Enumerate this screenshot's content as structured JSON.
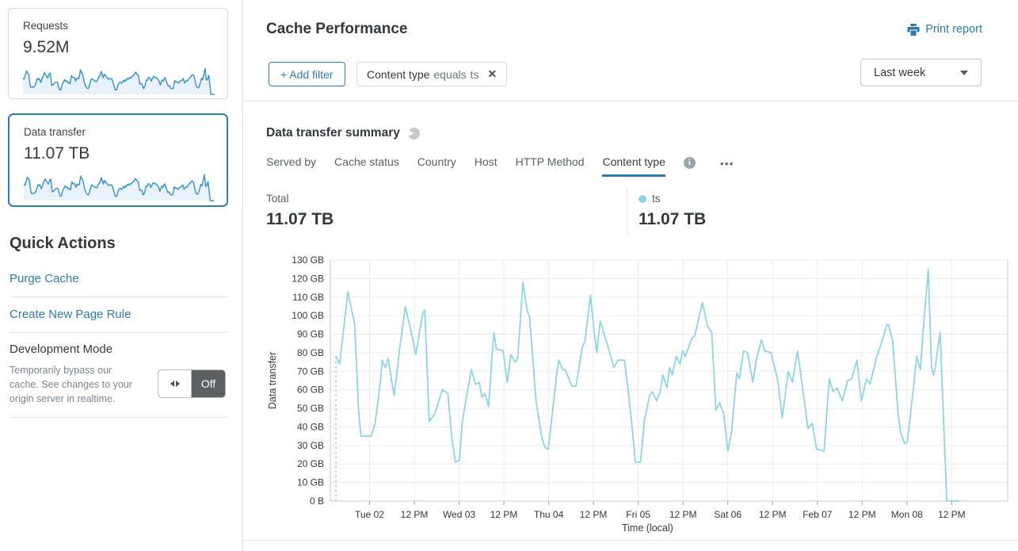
{
  "colors": {
    "accent": "#2c7cb0",
    "selected_card_border": "#2f7cb5",
    "series_line": "#8fd4e5",
    "sparkline_line": "#3e96cc",
    "sparkline_fill": "#e9f2fa",
    "toggle_off_bg": "#5d6063",
    "grid_line": "#ececec",
    "axis_line": "#c9c9c9"
  },
  "sidebar": {
    "cards": [
      {
        "label": "Requests",
        "value": "9.52M",
        "selected": false
      },
      {
        "label": "Data transfer",
        "value": "11.07 TB",
        "selected": true
      }
    ],
    "quick_actions": {
      "title": "Quick Actions",
      "links": [
        "Purge Cache",
        "Create New Page Rule"
      ],
      "dev_mode": {
        "title": "Development Mode",
        "description": "Temporarily bypass our cache. See changes to your origin server in realtime.",
        "toggle_state": "Off"
      }
    }
  },
  "header": {
    "title": "Cache Performance",
    "print_label": "Print report",
    "add_filter_label": "+ Add filter",
    "filter_chip": {
      "field": "Content type",
      "operator": "equals",
      "value": "ts",
      "close": "✕"
    },
    "time_range_selected": "Last week"
  },
  "summary": {
    "title": "Data transfer summary",
    "tabs": [
      "Served by",
      "Cache status",
      "Country",
      "Host",
      "HTTP Method",
      "Content type"
    ],
    "active_tab": "Content type",
    "more_label": "•••",
    "info_label": "i",
    "total_label": "Total",
    "total_value": "11.07 TB",
    "legend": [
      {
        "name": "ts",
        "value": "11.07 TB",
        "color": "#8fd4e5"
      }
    ]
  },
  "chart_data": {
    "type": "line",
    "title": "Data transfer summary",
    "xlabel": "Time (local)",
    "ylabel": "Data transfer",
    "ylim": [
      0,
      130
    ],
    "y_unit": "GB",
    "grid": true,
    "y_ticks": [
      {
        "value": 0,
        "label": "0 B"
      },
      {
        "value": 10,
        "label": "10 GB"
      },
      {
        "value": 20,
        "label": "20 GB"
      },
      {
        "value": 30,
        "label": "30 GB"
      },
      {
        "value": 40,
        "label": "40 GB"
      },
      {
        "value": 50,
        "label": "50 GB"
      },
      {
        "value": 60,
        "label": "60 GB"
      },
      {
        "value": 70,
        "label": "70 GB"
      },
      {
        "value": 80,
        "label": "80 GB"
      },
      {
        "value": 90,
        "label": "90 GB"
      },
      {
        "value": 100,
        "label": "100 GB"
      },
      {
        "value": 110,
        "label": "110 GB"
      },
      {
        "value": 120,
        "label": "120 GB"
      },
      {
        "value": 130,
        "label": "130 GB"
      }
    ],
    "x_domain_hours": [
      -1.5,
      180
    ],
    "x_ticks": [
      {
        "hour": 9,
        "label": "Tue 02"
      },
      {
        "hour": 21,
        "label": "12 PM"
      },
      {
        "hour": 33,
        "label": "Wed 03"
      },
      {
        "hour": 45,
        "label": "12 PM"
      },
      {
        "hour": 57,
        "label": "Thu 04"
      },
      {
        "hour": 69,
        "label": "12 PM"
      },
      {
        "hour": 81,
        "label": "Fri 05"
      },
      {
        "hour": 93,
        "label": "12 PM"
      },
      {
        "hour": 105,
        "label": "Sat 06"
      },
      {
        "hour": 117,
        "label": "12 PM"
      },
      {
        "hour": 129,
        "label": "Feb 07"
      },
      {
        "hour": 141,
        "label": "12 PM"
      },
      {
        "hour": 153,
        "label": "Mon 08"
      },
      {
        "hour": 165,
        "label": "12 PM"
      }
    ],
    "series": [
      {
        "name": "ts",
        "color": "#8fd4e5",
        "start_dashed_drop": true,
        "points": [
          [
            0,
            78
          ],
          [
            1,
            74
          ],
          [
            3.2,
            113
          ],
          [
            4.3,
            102
          ],
          [
            5,
            96
          ],
          [
            6.1,
            48
          ],
          [
            6.7,
            35
          ],
          [
            9.4,
            35
          ],
          [
            10.5,
            42
          ],
          [
            11.9,
            64
          ],
          [
            12.4,
            76
          ],
          [
            13.2,
            72
          ],
          [
            14,
            77
          ],
          [
            14.9,
            65
          ],
          [
            15.6,
            57
          ],
          [
            17,
            81
          ],
          [
            18.6,
            105
          ],
          [
            19.5,
            97
          ],
          [
            20.4,
            89
          ],
          [
            21.4,
            79
          ],
          [
            23.2,
            101
          ],
          [
            23.8,
            103
          ],
          [
            25,
            43
          ],
          [
            26.5,
            47
          ],
          [
            28.5,
            60
          ],
          [
            30,
            58
          ],
          [
            31,
            35
          ],
          [
            32,
            21
          ],
          [
            33.1,
            22
          ],
          [
            33.8,
            42
          ],
          [
            35.2,
            59
          ],
          [
            36.3,
            71
          ],
          [
            37.4,
            63
          ],
          [
            38.4,
            64
          ],
          [
            39.1,
            56
          ],
          [
            39.9,
            58
          ],
          [
            40.9,
            51
          ],
          [
            42.3,
            91
          ],
          [
            43,
            82
          ],
          [
            44.8,
            81
          ],
          [
            45.9,
            64
          ],
          [
            46.9,
            79
          ],
          [
            48,
            75
          ],
          [
            48.7,
            77
          ],
          [
            50.1,
            118
          ],
          [
            51.2,
            103
          ],
          [
            51.9,
            99
          ],
          [
            53.6,
            54
          ],
          [
            55.1,
            35
          ],
          [
            56,
            29
          ],
          [
            56.9,
            28
          ],
          [
            59.3,
            71
          ],
          [
            59.7,
            76
          ],
          [
            60.7,
            71
          ],
          [
            61.4,
            71
          ],
          [
            63.2,
            62
          ],
          [
            64.3,
            62
          ],
          [
            66,
            83
          ],
          [
            66.7,
            86
          ],
          [
            68.2,
            111
          ],
          [
            69.2,
            91
          ],
          [
            69.9,
            80
          ],
          [
            70.8,
            97
          ],
          [
            72.8,
            84
          ],
          [
            74.5,
            72
          ],
          [
            75.6,
            76
          ],
          [
            77.3,
            76
          ],
          [
            78.4,
            58
          ],
          [
            79.5,
            37
          ],
          [
            80.2,
            21
          ],
          [
            81.6,
            21
          ],
          [
            82.7,
            44
          ],
          [
            84.1,
            57
          ],
          [
            84.8,
            59
          ],
          [
            85.9,
            54
          ],
          [
            86.9,
            59
          ],
          [
            87.6,
            68
          ],
          [
            88.7,
            61
          ],
          [
            89.4,
            72
          ],
          [
            90.1,
            68
          ],
          [
            91.2,
            78
          ],
          [
            92.2,
            74
          ],
          [
            92.9,
            81
          ],
          [
            93.6,
            78
          ],
          [
            95.4,
            88
          ],
          [
            96.1,
            89
          ],
          [
            98.2,
            107
          ],
          [
            99.6,
            94
          ],
          [
            100.7,
            91
          ],
          [
            101.8,
            49
          ],
          [
            102.8,
            53
          ],
          [
            103.9,
            47
          ],
          [
            105,
            27
          ],
          [
            106,
            37
          ],
          [
            107.4,
            69
          ],
          [
            108.1,
            66
          ],
          [
            109.2,
            81
          ],
          [
            110.3,
            80
          ],
          [
            111.7,
            64
          ],
          [
            112.7,
            77
          ],
          [
            114,
            87
          ],
          [
            114.9,
            81
          ],
          [
            116.6,
            80
          ],
          [
            118.4,
            65
          ],
          [
            119.6,
            45
          ],
          [
            121.2,
            70
          ],
          [
            122.3,
            64
          ],
          [
            123.7,
            81
          ],
          [
            125.5,
            54
          ],
          [
            126.5,
            39
          ],
          [
            127.6,
            42
          ],
          [
            128.8,
            28
          ],
          [
            130.8,
            27
          ],
          [
            132.2,
            66
          ],
          [
            133.2,
            59
          ],
          [
            134.3,
            61
          ],
          [
            135.7,
            54
          ],
          [
            137.1,
            65
          ],
          [
            138.2,
            66
          ],
          [
            139.6,
            76
          ],
          [
            140.8,
            54
          ],
          [
            142.2,
            66
          ],
          [
            143.1,
            63
          ],
          [
            144.9,
            78
          ],
          [
            146,
            84
          ],
          [
            147.6,
            95
          ],
          [
            148.1,
            95
          ],
          [
            149.2,
            86
          ],
          [
            150.6,
            48
          ],
          [
            151.3,
            37
          ],
          [
            152.4,
            31
          ],
          [
            153.1,
            32
          ],
          [
            154.8,
            62
          ],
          [
            155.6,
            78
          ],
          [
            156.6,
            71
          ],
          [
            157.3,
            91
          ],
          [
            158.7,
            125
          ],
          [
            159.6,
            72
          ],
          [
            160.1,
            68
          ],
          [
            160.5,
            71
          ],
          [
            161.9,
            91
          ],
          [
            163,
            34
          ],
          [
            163.7,
            0
          ],
          [
            167,
            0
          ]
        ]
      }
    ]
  }
}
